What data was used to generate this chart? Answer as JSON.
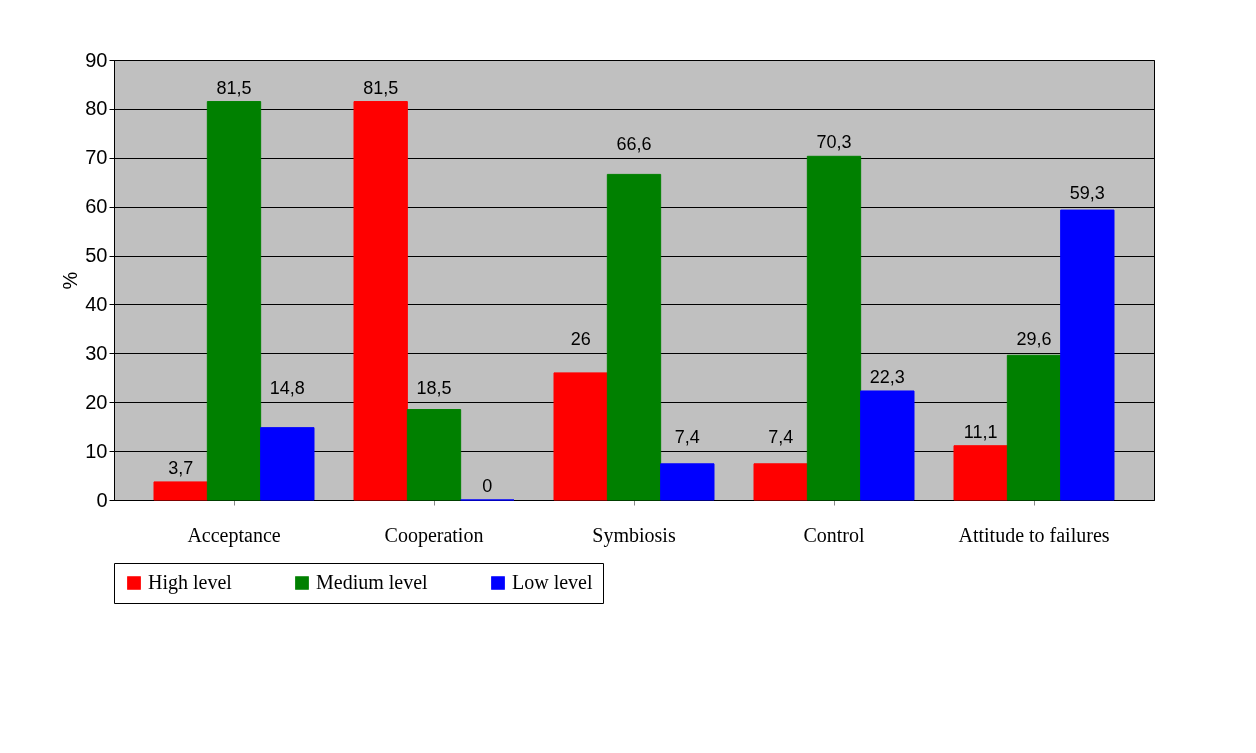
{
  "chart_data": {
    "type": "bar",
    "ylabel": "%",
    "categories": [
      "Acceptance",
      "Cooperation",
      "Symbiosis",
      "Control",
      "Attitude to failures"
    ],
    "series": [
      {
        "name": "High level",
        "color": "#ff0000",
        "values": [
          3.7,
          81.5,
          26,
          7.4,
          11.1
        ],
        "value_labels": [
          "3,7",
          "81,5",
          "26",
          "7,4",
          "11,1"
        ]
      },
      {
        "name": "Medium level",
        "color": "#008000",
        "values": [
          81.5,
          18.5,
          66.6,
          70.3,
          29.6
        ],
        "value_labels": [
          "81,5",
          "18,5",
          "66,6",
          "70,3",
          "29,6"
        ]
      },
      {
        "name": "Low level",
        "color": "#0000ff",
        "values": [
          14.8,
          0,
          7.4,
          22.3,
          59.3
        ],
        "value_labels": [
          "14,8",
          "0",
          "7,4",
          "22,3",
          "59,3"
        ]
      }
    ],
    "ylim": [
      0,
      90
    ],
    "yticks": [
      0,
      10,
      20,
      30,
      40,
      50,
      60,
      70,
      80,
      90
    ],
    "grid": "y",
    "legend": "bottom"
  }
}
